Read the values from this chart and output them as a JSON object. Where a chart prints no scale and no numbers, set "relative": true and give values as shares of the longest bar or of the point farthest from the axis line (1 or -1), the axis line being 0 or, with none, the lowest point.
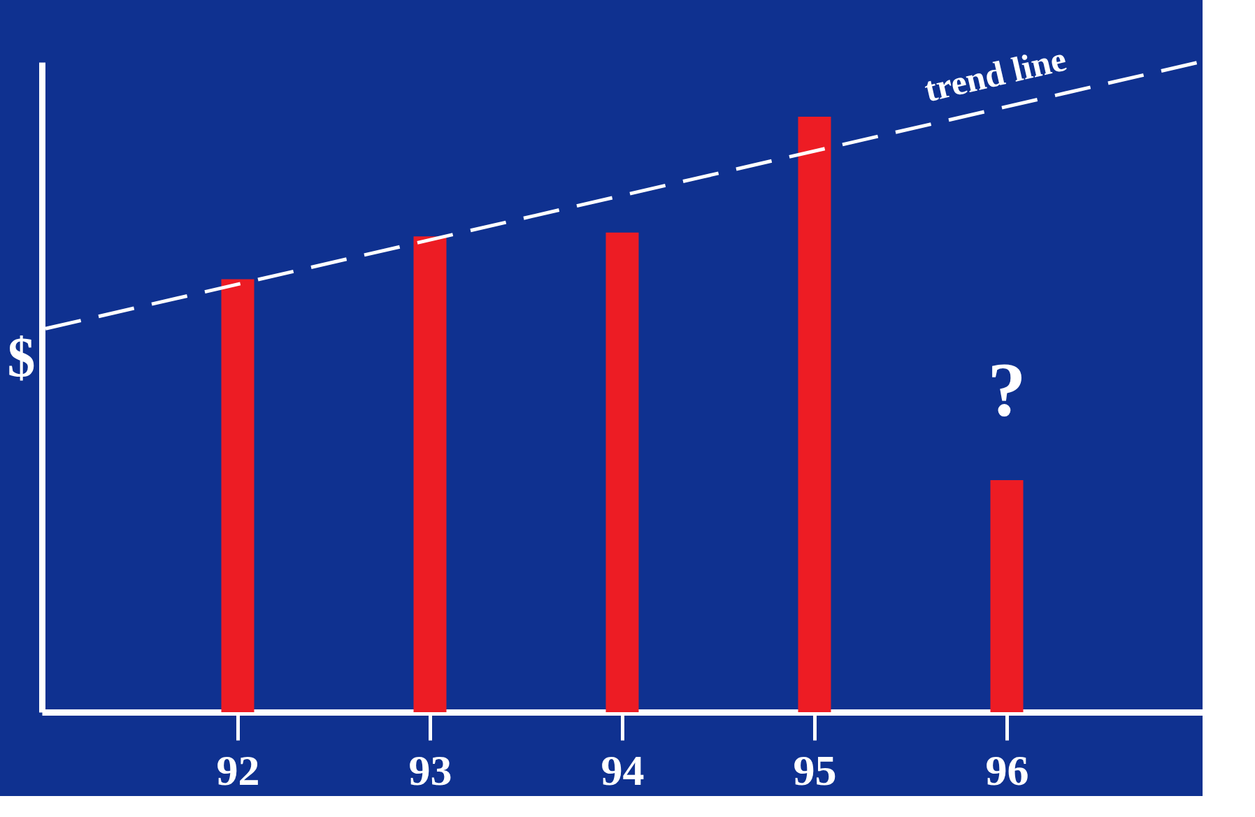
{
  "chart_data": {
    "type": "bar",
    "relative": true,
    "ylabel": "$",
    "x": [
      92,
      93,
      94,
      95,
      96
    ],
    "xlim": [
      91,
      97
    ],
    "xticks": [
      92,
      93,
      94,
      95,
      96
    ],
    "series": [
      {
        "color": "#ed1c24",
        "values": [
          0.666,
          0.732,
          0.738,
          0.916,
          0.357
        ]
      },
      {
        "type": "line",
        "color": "#ffffff",
        "line_style": "dashed",
        "x": [
          91,
          97
        ],
        "values": [
          0.59,
          1.0
        ]
      }
    ],
    "annotations": [
      "?",
      "trend line"
    ],
    "grid": false
  }
}
